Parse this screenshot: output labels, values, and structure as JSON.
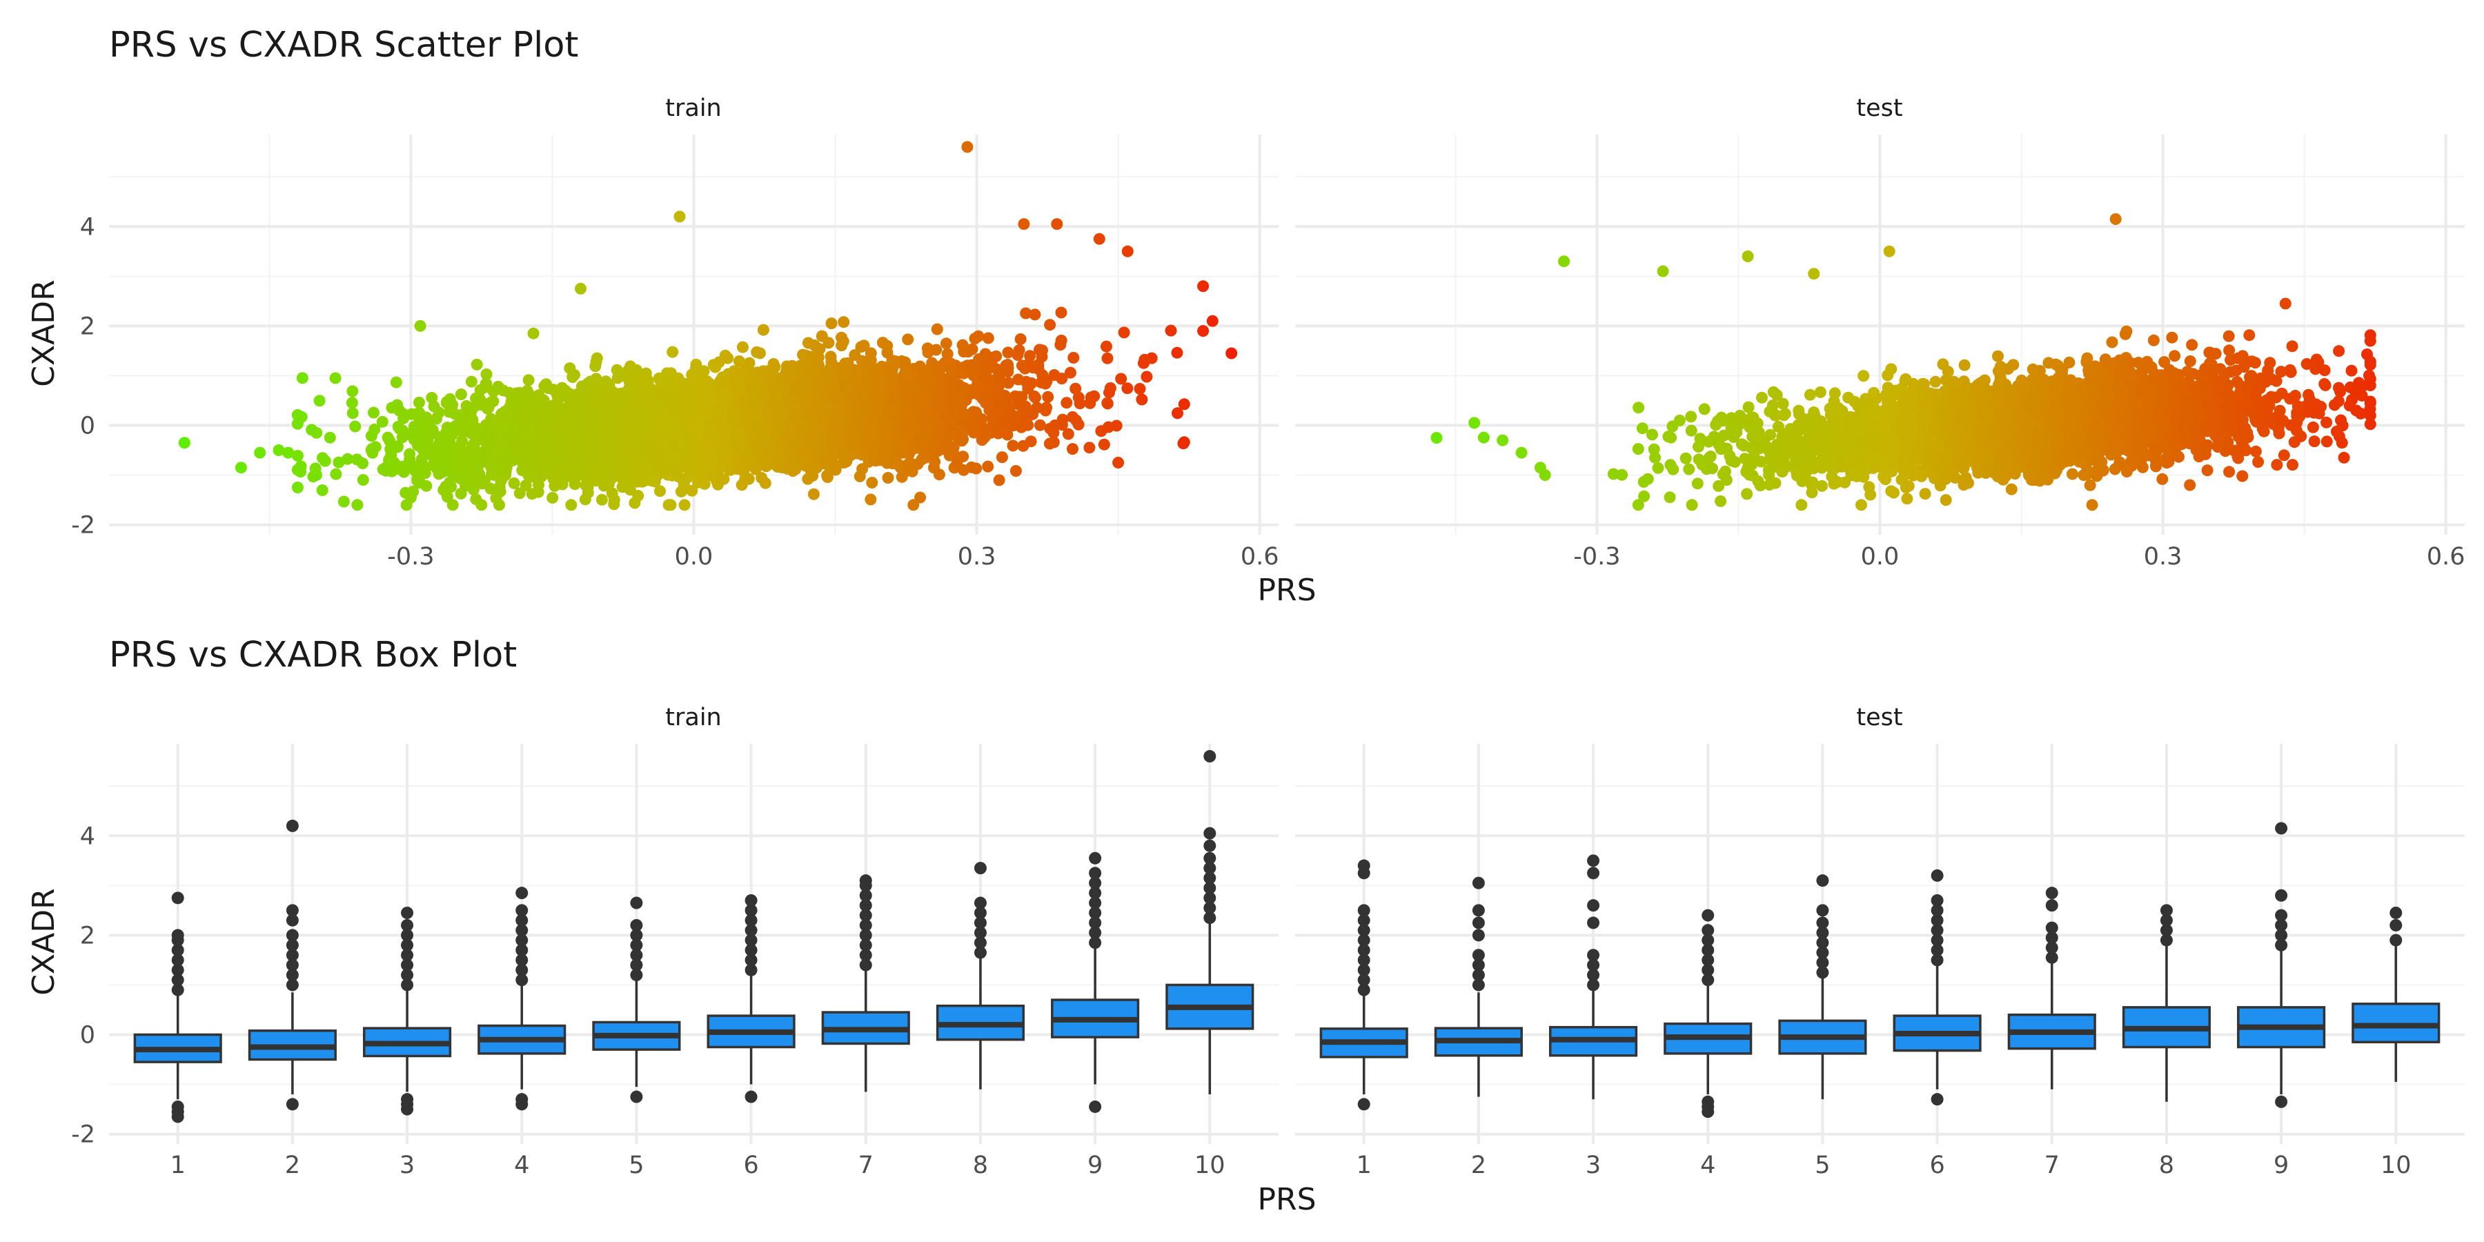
{
  "chart_data": [
    {
      "type": "scatter",
      "title": "PRS vs CXADR Scatter Plot",
      "xlabel": "PRS",
      "ylabel": "CXADR",
      "facets": [
        "train",
        "test"
      ],
      "xlim": [
        -0.62,
        0.62
      ],
      "ylim": [
        -2.2,
        5.85
      ],
      "x_ticks": [
        -0.3,
        0.0,
        0.3,
        0.6
      ],
      "x_tick_labels": [
        "-0.3",
        "0.0",
        "0.3",
        "0.6"
      ],
      "y_ticks": [
        -2,
        0,
        2,
        4
      ],
      "y_tick_labels": [
        "-2",
        "0",
        "2",
        "4"
      ],
      "grid": true,
      "color_gradient": {
        "low": "#5cf000",
        "mid": "#c8b400",
        "high": "#f02000",
        "domain": [
          -0.55,
          0.57
        ]
      },
      "cloud": {
        "train": {
          "n": 6000,
          "x_mean": 0.03,
          "x_sd": 0.145,
          "intercept": 0.0,
          "slope": 1.6,
          "y_sd": 0.6
        },
        "test": {
          "n": 3200,
          "x_mean": 0.14,
          "x_sd": 0.14,
          "intercept": -0.22,
          "slope": 1.55,
          "y_sd": 0.55
        }
      },
      "outliers": {
        "train": [
          [
            -0.54,
            -0.35
          ],
          [
            -0.48,
            -0.85
          ],
          [
            -0.46,
            -0.55
          ],
          [
            -0.44,
            -0.5
          ],
          [
            -0.43,
            -0.55
          ],
          [
            -0.38,
            0.95
          ],
          [
            -0.29,
            2.0
          ],
          [
            -0.12,
            2.75
          ],
          [
            -0.17,
            1.85
          ],
          [
            -0.015,
            4.2
          ],
          [
            0.29,
            5.6
          ],
          [
            0.35,
            4.05
          ],
          [
            0.385,
            4.05
          ],
          [
            0.43,
            3.75
          ],
          [
            0.46,
            3.5
          ],
          [
            0.54,
            2.8
          ],
          [
            0.55,
            2.1
          ],
          [
            0.54,
            1.9
          ],
          [
            0.57,
            1.45
          ],
          [
            0.45,
            -0.75
          ],
          [
            0.24,
            -1.45
          ],
          [
            -0.3,
            -1.45
          ],
          [
            -0.13,
            -1.6
          ],
          [
            -0.4,
            -0.15
          ]
        ],
        "test": [
          [
            -0.47,
            -0.25
          ],
          [
            -0.43,
            0.05
          ],
          [
            -0.4,
            -0.3
          ],
          [
            -0.38,
            -0.55
          ],
          [
            -0.36,
            -0.85
          ],
          [
            -0.355,
            -1.0
          ],
          [
            -0.335,
            3.3
          ],
          [
            -0.23,
            3.1
          ],
          [
            -0.14,
            3.4
          ],
          [
            -0.07,
            3.05
          ],
          [
            0.01,
            3.5
          ],
          [
            0.25,
            4.15
          ],
          [
            0.43,
            2.45
          ],
          [
            0.5,
            1.1
          ],
          [
            0.505,
            0.3
          ],
          [
            0.49,
            -0.35
          ],
          [
            0.07,
            -1.5
          ]
        ]
      }
    },
    {
      "type": "box",
      "title": "PRS vs CXADR Box Plot",
      "xlabel": "PRS",
      "ylabel": "CXADR",
      "facets": [
        "train",
        "test"
      ],
      "categories": [
        "1",
        "2",
        "3",
        "4",
        "5",
        "6",
        "7",
        "8",
        "9",
        "10"
      ],
      "ylim": [
        -2.2,
        5.85
      ],
      "y_ticks": [
        -2,
        0,
        2,
        4
      ],
      "y_tick_labels": [
        "-2",
        "0",
        "2",
        "4"
      ],
      "fill_color": "#1f8ff0",
      "series": [
        {
          "name": "train",
          "q1": [
            -0.55,
            -0.5,
            -0.43,
            -0.38,
            -0.3,
            -0.25,
            -0.18,
            -0.1,
            -0.05,
            0.12
          ],
          "median": [
            -0.3,
            -0.25,
            -0.18,
            -0.1,
            -0.02,
            0.05,
            0.1,
            0.2,
            0.3,
            0.55
          ],
          "q3": [
            0.0,
            0.08,
            0.13,
            0.18,
            0.25,
            0.38,
            0.45,
            0.58,
            0.7,
            1.0
          ],
          "whisker_low": [
            -1.3,
            -1.2,
            -1.15,
            -1.1,
            -1.05,
            -1.0,
            -1.15,
            -1.1,
            -1.0,
            -1.2
          ],
          "whisker_high": [
            0.8,
            0.85,
            0.95,
            1.0,
            1.15,
            1.25,
            1.35,
            1.6,
            1.8,
            2.3
          ],
          "outliers_high": [
            [
              0.9,
              1.1,
              1.3,
              1.5,
              1.7,
              1.9,
              2.0,
              2.75
            ],
            [
              1.0,
              1.2,
              1.4,
              1.6,
              1.8,
              2.0,
              2.3,
              2.5,
              4.2
            ],
            [
              1.0,
              1.2,
              1.4,
              1.6,
              1.8,
              2.0,
              2.2,
              2.45
            ],
            [
              1.1,
              1.3,
              1.5,
              1.7,
              1.9,
              2.1,
              2.3,
              2.5,
              2.85
            ],
            [
              1.2,
              1.4,
              1.6,
              1.8,
              2.0,
              2.2,
              2.65
            ],
            [
              1.3,
              1.5,
              1.7,
              1.9,
              2.1,
              2.3,
              2.5,
              2.7
            ],
            [
              1.4,
              1.6,
              1.8,
              2.0,
              2.2,
              2.4,
              2.6,
              2.8,
              3.0,
              3.1
            ],
            [
              1.65,
              1.85,
              2.05,
              2.25,
              2.45,
              2.65,
              3.35
            ],
            [
              1.85,
              2.05,
              2.25,
              2.45,
              2.65,
              2.85,
              3.05,
              3.25,
              3.55
            ],
            [
              2.35,
              2.55,
              2.75,
              2.95,
              3.15,
              3.35,
              3.55,
              3.8,
              4.05,
              5.6
            ]
          ],
          "outliers_low": [
            [
              -1.45,
              -1.55,
              -1.65
            ],
            [
              -1.4
            ],
            [
              -1.3,
              -1.4,
              -1.5
            ],
            [
              -1.3,
              -1.4
            ],
            [
              -1.25
            ],
            [
              -1.25
            ],
            [],
            [],
            [
              -1.45
            ],
            []
          ]
        },
        {
          "name": "test",
          "q1": [
            -0.45,
            -0.42,
            -0.42,
            -0.38,
            -0.38,
            -0.32,
            -0.28,
            -0.25,
            -0.25,
            -0.15
          ],
          "median": [
            -0.15,
            -0.12,
            -0.1,
            -0.05,
            -0.05,
            0.02,
            0.05,
            0.12,
            0.15,
            0.18
          ],
          "q3": [
            0.12,
            0.13,
            0.15,
            0.22,
            0.28,
            0.38,
            0.4,
            0.55,
            0.55,
            0.62
          ],
          "whisker_low": [
            -1.2,
            -1.25,
            -1.3,
            -1.2,
            -1.3,
            -1.1,
            -1.1,
            -1.35,
            -1.2,
            -0.95
          ],
          "whisker_high": [
            0.8,
            0.85,
            0.9,
            1.0,
            1.15,
            1.4,
            1.45,
            1.8,
            1.7,
            1.8
          ],
          "outliers_high": [
            [
              0.9,
              1.1,
              1.3,
              1.5,
              1.7,
              1.9,
              2.1,
              2.3,
              2.5,
              3.25,
              3.4
            ],
            [
              1.0,
              1.2,
              1.4,
              1.6,
              2.0,
              2.25,
              2.5,
              3.05
            ],
            [
              1.0,
              1.2,
              1.4,
              1.6,
              2.25,
              2.6,
              3.25,
              3.5
            ],
            [
              1.1,
              1.3,
              1.5,
              1.7,
              1.9,
              2.1,
              2.4
            ],
            [
              1.25,
              1.45,
              1.65,
              1.85,
              2.05,
              2.25,
              2.5,
              3.1
            ],
            [
              1.5,
              1.7,
              1.9,
              2.1,
              2.3,
              2.5,
              2.7,
              3.2
            ],
            [
              1.55,
              1.75,
              1.95,
              2.15,
              2.6,
              2.85
            ],
            [
              1.9,
              2.1,
              2.3,
              2.5
            ],
            [
              1.8,
              2.0,
              2.2,
              2.4,
              2.8,
              4.15
            ],
            [
              1.9,
              2.2,
              2.45
            ]
          ],
          "outliers_low": [
            [
              -1.4
            ],
            [],
            [],
            [
              -1.35,
              -1.45,
              -1.55
            ],
            [],
            [
              -1.3
            ],
            [],
            [],
            [
              -1.35
            ],
            []
          ]
        }
      ]
    }
  ]
}
